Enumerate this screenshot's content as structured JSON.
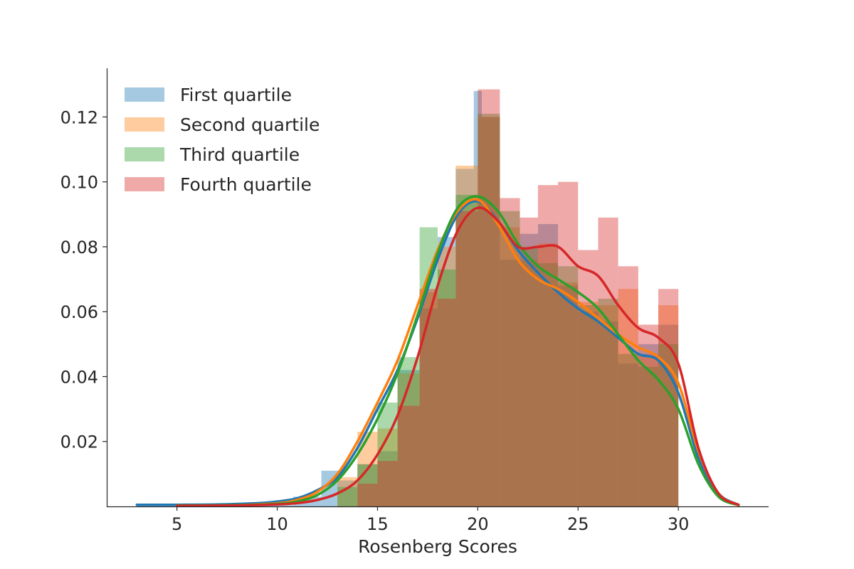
{
  "chart_data": {
    "type": "bar",
    "subtype": "histogram-with-kde",
    "title": "",
    "xlabel": "Rosenberg Scores",
    "ylabel": "",
    "xlim": [
      1.5,
      34.5
    ],
    "ylim": [
      0,
      0.135
    ],
    "xticks": [
      5,
      10,
      15,
      20,
      25,
      30
    ],
    "yticks": [
      0.02,
      0.04,
      0.06,
      0.08,
      0.1,
      0.12
    ],
    "ytick_labels": [
      "0.02",
      "0.04",
      "0.06",
      "0.08",
      "0.10",
      "0.12"
    ],
    "grid": false,
    "legend_position": "top-left",
    "bar_opacity": 0.4,
    "series": [
      {
        "name": "First quartile",
        "color": "#1f77b4",
        "bins": [
          {
            "x0": 3,
            "x1": 10.8,
            "h": 0.0004
          },
          {
            "x0": 10.8,
            "x1": 12.2,
            "h": 0.003
          },
          {
            "x0": 12.2,
            "x1": 13.1,
            "h": 0.011
          },
          {
            "x0": 13.1,
            "x1": 14,
            "h": 0.008
          },
          {
            "x0": 14,
            "x1": 15,
            "h": 0.013
          },
          {
            "x0": 15,
            "x1": 16,
            "h": 0.017
          },
          {
            "x0": 16,
            "x1": 17.1,
            "h": 0.042
          },
          {
            "x0": 17.1,
            "x1": 18,
            "h": 0.061
          },
          {
            "x0": 18,
            "x1": 18.9,
            "h": 0.083
          },
          {
            "x0": 18.9,
            "x1": 19.8,
            "h": 0.104
          },
          {
            "x0": 19.8,
            "x1": 20.2,
            "h": 0.128
          },
          {
            "x0": 20.2,
            "x1": 21.1,
            "h": 0.12
          },
          {
            "x0": 21.1,
            "x1": 22.1,
            "h": 0.076
          },
          {
            "x0": 22.1,
            "x1": 23,
            "h": 0.084
          },
          {
            "x0": 23,
            "x1": 24,
            "h": 0.087
          },
          {
            "x0": 24,
            "x1": 25,
            "h": 0.068
          },
          {
            "x0": 25,
            "x1": 26,
            "h": 0.06
          },
          {
            "x0": 26,
            "x1": 27,
            "h": 0.057
          },
          {
            "x0": 27,
            "x1": 28,
            "h": 0.044
          },
          {
            "x0": 28,
            "x1": 29,
            "h": 0.05
          },
          {
            "x0": 29,
            "x1": 30,
            "h": 0.056
          }
        ],
        "kde": [
          [
            3,
            0.0005
          ],
          [
            5,
            0.0005
          ],
          [
            7,
            0.0006
          ],
          [
            9,
            0.001
          ],
          [
            10,
            0.0015
          ],
          [
            11,
            0.0025
          ],
          [
            12,
            0.005
          ],
          [
            13,
            0.009
          ],
          [
            14,
            0.018
          ],
          [
            15,
            0.03
          ],
          [
            16,
            0.042
          ],
          [
            17,
            0.058
          ],
          [
            18,
            0.076
          ],
          [
            19,
            0.09
          ],
          [
            20,
            0.094
          ],
          [
            21,
            0.088
          ],
          [
            22,
            0.079
          ],
          [
            23,
            0.072
          ],
          [
            24,
            0.066
          ],
          [
            25,
            0.061
          ],
          [
            26,
            0.057
          ],
          [
            27,
            0.052
          ],
          [
            28,
            0.047
          ],
          [
            29,
            0.045
          ],
          [
            30,
            0.035
          ],
          [
            31,
            0.015
          ],
          [
            32,
            0.004
          ],
          [
            33,
            0.0005
          ]
        ]
      },
      {
        "name": "Second quartile",
        "color": "#ff7f0e",
        "bins": [
          {
            "x0": 13,
            "x1": 14,
            "h": 0.009
          },
          {
            "x0": 14,
            "x1": 15,
            "h": 0.023
          },
          {
            "x0": 15,
            "x1": 16,
            "h": 0.024
          },
          {
            "x0": 16,
            "x1": 17.1,
            "h": 0.041
          },
          {
            "x0": 17.1,
            "x1": 18,
            "h": 0.066
          },
          {
            "x0": 18,
            "x1": 18.9,
            "h": 0.08
          },
          {
            "x0": 18.9,
            "x1": 20,
            "h": 0.105
          },
          {
            "x0": 20,
            "x1": 21.1,
            "h": 0.12
          },
          {
            "x0": 21.1,
            "x1": 22.1,
            "h": 0.086
          },
          {
            "x0": 22.1,
            "x1": 23,
            "h": 0.076
          },
          {
            "x0": 23,
            "x1": 24,
            "h": 0.081
          },
          {
            "x0": 24,
            "x1": 25,
            "h": 0.069
          },
          {
            "x0": 25,
            "x1": 26,
            "h": 0.063
          },
          {
            "x0": 26,
            "x1": 27,
            "h": 0.062
          },
          {
            "x0": 27,
            "x1": 28,
            "h": 0.067
          },
          {
            "x0": 28,
            "x1": 29,
            "h": 0.047
          },
          {
            "x0": 29,
            "x1": 30,
            "h": 0.062
          }
        ],
        "kde": [
          [
            5,
            0.0002
          ],
          [
            8,
            0.0004
          ],
          [
            10,
            0.001
          ],
          [
            11,
            0.002
          ],
          [
            12,
            0.0045
          ],
          [
            13,
            0.01
          ],
          [
            14,
            0.02
          ],
          [
            15,
            0.032
          ],
          [
            16,
            0.045
          ],
          [
            17,
            0.062
          ],
          [
            18,
            0.079
          ],
          [
            19,
            0.091
          ],
          [
            20,
            0.0945
          ],
          [
            21,
            0.087
          ],
          [
            22,
            0.076
          ],
          [
            23,
            0.07
          ],
          [
            24,
            0.067
          ],
          [
            25,
            0.063
          ],
          [
            26,
            0.058
          ],
          [
            27,
            0.053
          ],
          [
            28,
            0.049
          ],
          [
            29,
            0.046
          ],
          [
            30,
            0.038
          ],
          [
            31,
            0.017
          ],
          [
            32,
            0.004
          ],
          [
            33,
            0.0005
          ]
        ]
      },
      {
        "name": "Third quartile",
        "color": "#2ca02c",
        "bins": [
          {
            "x0": 13,
            "x1": 14,
            "h": 0.006
          },
          {
            "x0": 14,
            "x1": 15,
            "h": 0.013
          },
          {
            "x0": 15,
            "x1": 16,
            "h": 0.032
          },
          {
            "x0": 16,
            "x1": 17.1,
            "h": 0.046
          },
          {
            "x0": 17.1,
            "x1": 18,
            "h": 0.086
          },
          {
            "x0": 18,
            "x1": 18.9,
            "h": 0.073
          },
          {
            "x0": 18.9,
            "x1": 20,
            "h": 0.096
          },
          {
            "x0": 20,
            "x1": 21.1,
            "h": 0.121
          },
          {
            "x0": 21.1,
            "x1": 22.1,
            "h": 0.091
          },
          {
            "x0": 22.1,
            "x1": 23,
            "h": 0.08
          },
          {
            "x0": 23,
            "x1": 24,
            "h": 0.075
          },
          {
            "x0": 24,
            "x1": 25,
            "h": 0.074
          },
          {
            "x0": 25,
            "x1": 26,
            "h": 0.062
          },
          {
            "x0": 26,
            "x1": 27,
            "h": 0.064
          },
          {
            "x0": 27,
            "x1": 28,
            "h": 0.047
          },
          {
            "x0": 28,
            "x1": 29,
            "h": 0.043
          },
          {
            "x0": 29,
            "x1": 30,
            "h": 0.05
          }
        ],
        "kde": [
          [
            5,
            0.0003
          ],
          [
            8,
            0.0004
          ],
          [
            10,
            0.0008
          ],
          [
            11,
            0.0015
          ],
          [
            12,
            0.0035
          ],
          [
            13,
            0.008
          ],
          [
            14,
            0.016
          ],
          [
            15,
            0.027
          ],
          [
            16,
            0.041
          ],
          [
            17,
            0.059
          ],
          [
            18,
            0.078
          ],
          [
            19,
            0.092
          ],
          [
            20,
            0.0955
          ],
          [
            21,
            0.091
          ],
          [
            22,
            0.081
          ],
          [
            23,
            0.074
          ],
          [
            24,
            0.07
          ],
          [
            25,
            0.066
          ],
          [
            26,
            0.061
          ],
          [
            27,
            0.053
          ],
          [
            28,
            0.045
          ],
          [
            29,
            0.039
          ],
          [
            30,
            0.03
          ],
          [
            31,
            0.013
          ],
          [
            32,
            0.003
          ],
          [
            33,
            0.0004
          ]
        ]
      },
      {
        "name": "Fourth quartile",
        "color": "#d62728",
        "bins": [
          {
            "x0": 14,
            "x1": 15,
            "h": 0.007
          },
          {
            "x0": 15,
            "x1": 16,
            "h": 0.014
          },
          {
            "x0": 16,
            "x1": 17.1,
            "h": 0.031
          },
          {
            "x0": 17.1,
            "x1": 18,
            "h": 0.067
          },
          {
            "x0": 18,
            "x1": 18.9,
            "h": 0.064
          },
          {
            "x0": 18.9,
            "x1": 20,
            "h": 0.091
          },
          {
            "x0": 20,
            "x1": 21.1,
            "h": 0.1285
          },
          {
            "x0": 21.1,
            "x1": 22.1,
            "h": 0.095
          },
          {
            "x0": 22.1,
            "x1": 23,
            "h": 0.089
          },
          {
            "x0": 23,
            "x1": 24,
            "h": 0.099
          },
          {
            "x0": 24,
            "x1": 25,
            "h": 0.1
          },
          {
            "x0": 25,
            "x1": 26,
            "h": 0.079
          },
          {
            "x0": 26,
            "x1": 27,
            "h": 0.089
          },
          {
            "x0": 27,
            "x1": 28,
            "h": 0.074
          },
          {
            "x0": 28,
            "x1": 29,
            "h": 0.056
          },
          {
            "x0": 29,
            "x1": 30,
            "h": 0.067
          }
        ],
        "kde": [
          [
            5,
            0.0002
          ],
          [
            8,
            0.0003
          ],
          [
            10,
            0.0006
          ],
          [
            11,
            0.001
          ],
          [
            12,
            0.002
          ],
          [
            13,
            0.004
          ],
          [
            14,
            0.008
          ],
          [
            15,
            0.016
          ],
          [
            16,
            0.028
          ],
          [
            17,
            0.046
          ],
          [
            18,
            0.068
          ],
          [
            19,
            0.085
          ],
          [
            20,
            0.092
          ],
          [
            21,
            0.088
          ],
          [
            22,
            0.08
          ],
          [
            23,
            0.08
          ],
          [
            24,
            0.08
          ],
          [
            25,
            0.074
          ],
          [
            26,
            0.071
          ],
          [
            27,
            0.062
          ],
          [
            28,
            0.055
          ],
          [
            29,
            0.052
          ],
          [
            30,
            0.044
          ],
          [
            31,
            0.018
          ],
          [
            32,
            0.004
          ],
          [
            33,
            0.0005
          ]
        ]
      }
    ]
  }
}
